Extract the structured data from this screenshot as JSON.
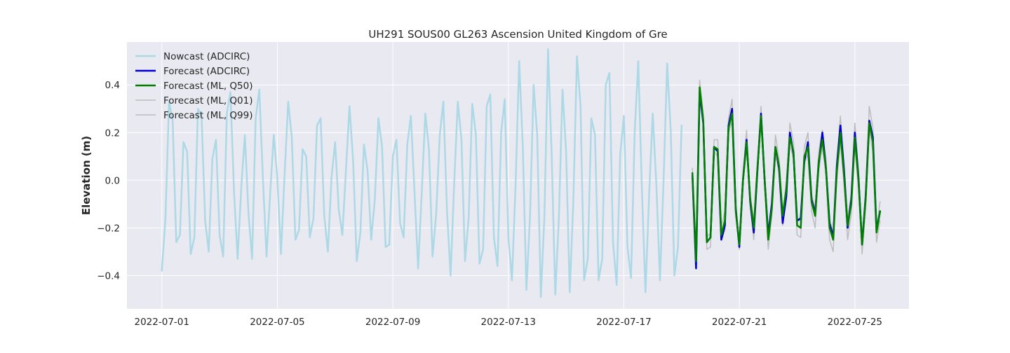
{
  "chart_data": {
    "type": "line",
    "title": "UH291 SOUS00 GL263 Ascension United Kingdom of Gre",
    "xlabel": "",
    "ylabel": "Elevation (m)",
    "x_type": "date",
    "xlim": [
      "2022-06-29T19:00",
      "2022-07-26T21:00"
    ],
    "ylim": [
      -0.54,
      0.58
    ],
    "xticks": [
      "2022-07-01",
      "2022-07-05",
      "2022-07-09",
      "2022-07-13",
      "2022-07-17",
      "2022-07-21",
      "2022-07-25"
    ],
    "yticks": [
      -0.4,
      -0.2,
      0.0,
      0.2,
      0.4
    ],
    "ytick_labels": [
      "−0.4",
      "−0.2",
      "0.0",
      "0.2",
      "0.4"
    ],
    "grid": true,
    "legend_position": "top-left",
    "background": "#e9e9f1",
    "series": [
      {
        "name": "Nowcast (ADCIRC)",
        "color": "#add8e6",
        "width": 2.5,
        "x": [
          "2022-07-01T00:00",
          "2022-07-01T03:00",
          "2022-07-01T06:00",
          "2022-07-01T09:00",
          "2022-07-01T12:00",
          "2022-07-01T15:00",
          "2022-07-01T18:00",
          "2022-07-01T21:00",
          "2022-07-02T00:00",
          "2022-07-02T03:00",
          "2022-07-02T06:00",
          "2022-07-02T09:00",
          "2022-07-02T12:00",
          "2022-07-02T15:00",
          "2022-07-02T18:00",
          "2022-07-02T21:00",
          "2022-07-03T00:00",
          "2022-07-03T03:00",
          "2022-07-03T06:00",
          "2022-07-03T09:00",
          "2022-07-03T12:00",
          "2022-07-03T15:00",
          "2022-07-03T18:00",
          "2022-07-03T21:00",
          "2022-07-04T00:00",
          "2022-07-04T03:00",
          "2022-07-04T06:00",
          "2022-07-04T09:00",
          "2022-07-04T12:00",
          "2022-07-04T15:00",
          "2022-07-04T18:00",
          "2022-07-04T21:00",
          "2022-07-05T00:00",
          "2022-07-05T03:00",
          "2022-07-05T06:00",
          "2022-07-05T09:00",
          "2022-07-05T12:00",
          "2022-07-05T15:00",
          "2022-07-05T18:00",
          "2022-07-05T21:00",
          "2022-07-06T00:00",
          "2022-07-06T03:00",
          "2022-07-06T06:00",
          "2022-07-06T09:00",
          "2022-07-06T12:00",
          "2022-07-06T15:00",
          "2022-07-06T18:00",
          "2022-07-06T21:00",
          "2022-07-07T00:00",
          "2022-07-07T03:00",
          "2022-07-07T06:00",
          "2022-07-07T09:00",
          "2022-07-07T12:00",
          "2022-07-07T15:00",
          "2022-07-07T18:00",
          "2022-07-07T21:00",
          "2022-07-08T00:00",
          "2022-07-08T03:00",
          "2022-07-08T06:00",
          "2022-07-08T09:00",
          "2022-07-08T12:00",
          "2022-07-08T15:00",
          "2022-07-08T18:00",
          "2022-07-08T21:00",
          "2022-07-09T00:00",
          "2022-07-09T03:00",
          "2022-07-09T06:00",
          "2022-07-09T09:00",
          "2022-07-09T12:00",
          "2022-07-09T15:00",
          "2022-07-09T18:00",
          "2022-07-09T21:00",
          "2022-07-10T00:00",
          "2022-07-10T03:00",
          "2022-07-10T06:00",
          "2022-07-10T09:00",
          "2022-07-10T12:00",
          "2022-07-10T15:00",
          "2022-07-10T18:00",
          "2022-07-10T21:00",
          "2022-07-11T00:00",
          "2022-07-11T03:00",
          "2022-07-11T06:00",
          "2022-07-11T09:00",
          "2022-07-11T12:00",
          "2022-07-11T15:00",
          "2022-07-11T18:00",
          "2022-07-11T21:00",
          "2022-07-12T00:00",
          "2022-07-12T03:00",
          "2022-07-12T06:00",
          "2022-07-12T09:00",
          "2022-07-12T12:00",
          "2022-07-12T15:00",
          "2022-07-12T18:00",
          "2022-07-12T21:00",
          "2022-07-13T00:00",
          "2022-07-13T03:00",
          "2022-07-13T06:00",
          "2022-07-13T09:00",
          "2022-07-13T12:00",
          "2022-07-13T15:00",
          "2022-07-13T18:00",
          "2022-07-13T21:00",
          "2022-07-14T00:00",
          "2022-07-14T03:00",
          "2022-07-14T06:00",
          "2022-07-14T09:00",
          "2022-07-14T12:00",
          "2022-07-14T15:00",
          "2022-07-14T18:00",
          "2022-07-14T21:00",
          "2022-07-15T00:00",
          "2022-07-15T03:00",
          "2022-07-15T06:00",
          "2022-07-15T09:00",
          "2022-07-15T12:00",
          "2022-07-15T15:00",
          "2022-07-15T18:00",
          "2022-07-15T21:00",
          "2022-07-16T00:00",
          "2022-07-16T03:00",
          "2022-07-16T06:00",
          "2022-07-16T09:00",
          "2022-07-16T12:00",
          "2022-07-16T15:00",
          "2022-07-16T18:00",
          "2022-07-16T21:00",
          "2022-07-17T00:00",
          "2022-07-17T03:00",
          "2022-07-17T06:00",
          "2022-07-17T09:00",
          "2022-07-17T12:00",
          "2022-07-17T15:00",
          "2022-07-17T18:00",
          "2022-07-17T21:00",
          "2022-07-18T00:00",
          "2022-07-18T03:00",
          "2022-07-18T06:00",
          "2022-07-18T09:00",
          "2022-07-18T12:00",
          "2022-07-18T15:00",
          "2022-07-18T18:00",
          "2022-07-18T21:00",
          "2022-07-19T00:00"
        ],
        "y": [
          -0.38,
          -0.16,
          0.33,
          0.25,
          -0.26,
          -0.23,
          0.16,
          0.12,
          -0.31,
          -0.24,
          0.3,
          0.27,
          -0.17,
          -0.3,
          0.09,
          0.17,
          -0.23,
          -0.32,
          0.28,
          0.37,
          -0.05,
          -0.33,
          -0.03,
          0.19,
          -0.14,
          -0.33,
          0.26,
          0.38,
          0.01,
          -0.32,
          -0.06,
          0.19,
          0.01,
          -0.31,
          0.02,
          0.33,
          0.18,
          -0.25,
          -0.21,
          0.13,
          0.1,
          -0.24,
          -0.16,
          0.23,
          0.26,
          -0.15,
          -0.3,
          0.01,
          0.16,
          -0.12,
          -0.23,
          0.04,
          0.31,
          0.08,
          -0.34,
          -0.22,
          0.15,
          0.04,
          -0.25,
          -0.08,
          0.26,
          0.14,
          -0.28,
          -0.27,
          0.1,
          0.17,
          -0.18,
          -0.24,
          0.15,
          0.27,
          -0.05,
          -0.37,
          -0.05,
          0.28,
          0.13,
          -0.32,
          -0.14,
          0.19,
          0.33,
          -0.13,
          -0.4,
          -0.01,
          0.33,
          0.17,
          -0.34,
          -0.16,
          0.32,
          0.19,
          -0.35,
          -0.29,
          0.31,
          0.36,
          -0.24,
          -0.36,
          0.2,
          0.34,
          -0.24,
          -0.42,
          -0.02,
          0.5,
          0.14,
          -0.46,
          -0.15,
          0.4,
          0.19,
          -0.49,
          -0.15,
          0.55,
          0.11,
          -0.48,
          -0.16,
          0.38,
          0.12,
          -0.47,
          -0.09,
          0.52,
          0.31,
          -0.42,
          -0.33,
          0.26,
          0.19,
          -0.42,
          -0.33,
          0.4,
          0.45,
          -0.26,
          -0.44,
          0.11,
          0.27,
          -0.28,
          -0.41,
          0.2,
          0.5,
          -0.04,
          -0.47,
          -0.06,
          0.28,
          -0.02,
          -0.42,
          0.0,
          0.49,
          0.2,
          -0.4,
          -0.28,
          0.23
        ]
      },
      {
        "name": "Forecast (ADCIRC)",
        "color": "#0000cc",
        "width": 2.5,
        "x": [
          "2022-07-19T09:00",
          "2022-07-19T12:00",
          "2022-07-19T15:00",
          "2022-07-19T18:00",
          "2022-07-19T21:00",
          "2022-07-20T00:00",
          "2022-07-20T03:00",
          "2022-07-20T06:00",
          "2022-07-20T09:00",
          "2022-07-20T12:00",
          "2022-07-20T15:00",
          "2022-07-20T18:00",
          "2022-07-20T21:00",
          "2022-07-21T00:00",
          "2022-07-21T03:00",
          "2022-07-21T06:00",
          "2022-07-21T09:00",
          "2022-07-21T12:00",
          "2022-07-21T15:00",
          "2022-07-21T18:00",
          "2022-07-21T21:00",
          "2022-07-22T00:00",
          "2022-07-22T03:00",
          "2022-07-22T06:00",
          "2022-07-22T09:00",
          "2022-07-22T12:00",
          "2022-07-22T15:00",
          "2022-07-22T18:00",
          "2022-07-22T21:00",
          "2022-07-23T00:00",
          "2022-07-23T03:00",
          "2022-07-23T06:00",
          "2022-07-23T09:00",
          "2022-07-23T12:00",
          "2022-07-23T15:00",
          "2022-07-23T18:00",
          "2022-07-23T21:00",
          "2022-07-24T00:00",
          "2022-07-24T03:00",
          "2022-07-24T06:00",
          "2022-07-24T09:00",
          "2022-07-24T12:00",
          "2022-07-24T15:00",
          "2022-07-24T18:00",
          "2022-07-24T21:00",
          "2022-07-25T00:00",
          "2022-07-25T03:00",
          "2022-07-25T06:00",
          "2022-07-25T09:00",
          "2022-07-25T12:00",
          "2022-07-25T15:00",
          "2022-07-25T18:00",
          "2022-07-25T21:00"
        ],
        "y": [
          0.02,
          -0.37,
          0.37,
          0.24,
          -0.26,
          -0.24,
          0.14,
          0.12,
          -0.25,
          -0.19,
          0.23,
          0.3,
          -0.12,
          -0.28,
          0.0,
          0.17,
          -0.09,
          -0.22,
          0.04,
          0.28,
          0.0,
          -0.23,
          -0.1,
          0.14,
          0.05,
          -0.18,
          -0.07,
          0.2,
          0.11,
          -0.17,
          -0.16,
          0.08,
          0.16,
          -0.08,
          -0.14,
          0.07,
          0.2,
          0.05,
          -0.18,
          -0.24,
          0.06,
          0.23,
          0.04,
          -0.2,
          -0.08,
          0.2,
          0.01,
          -0.27,
          -0.07,
          0.25,
          0.18,
          -0.21,
          -0.13
        ]
      },
      {
        "name": "Forecast (ML, Q50)",
        "color": "#008000",
        "width": 2.5,
        "x": [
          "2022-07-19T09:00",
          "2022-07-19T12:00",
          "2022-07-19T15:00",
          "2022-07-19T18:00",
          "2022-07-19T21:00",
          "2022-07-20T00:00",
          "2022-07-20T03:00",
          "2022-07-20T06:00",
          "2022-07-20T09:00",
          "2022-07-20T12:00",
          "2022-07-20T15:00",
          "2022-07-20T18:00",
          "2022-07-20T21:00",
          "2022-07-21T00:00",
          "2022-07-21T03:00",
          "2022-07-21T06:00",
          "2022-07-21T09:00",
          "2022-07-21T12:00",
          "2022-07-21T15:00",
          "2022-07-21T18:00",
          "2022-07-21T21:00",
          "2022-07-22T00:00",
          "2022-07-22T03:00",
          "2022-07-22T06:00",
          "2022-07-22T09:00",
          "2022-07-22T12:00",
          "2022-07-22T15:00",
          "2022-07-22T18:00",
          "2022-07-22T21:00",
          "2022-07-23T00:00",
          "2022-07-23T03:00",
          "2022-07-23T06:00",
          "2022-07-23T09:00",
          "2022-07-23T12:00",
          "2022-07-23T15:00",
          "2022-07-23T18:00",
          "2022-07-23T21:00",
          "2022-07-24T00:00",
          "2022-07-24T03:00",
          "2022-07-24T06:00",
          "2022-07-24T09:00",
          "2022-07-24T12:00",
          "2022-07-24T15:00",
          "2022-07-24T18:00",
          "2022-07-24T21:00",
          "2022-07-25T00:00",
          "2022-07-25T03:00",
          "2022-07-25T06:00",
          "2022-07-25T09:00",
          "2022-07-25T12:00",
          "2022-07-25T15:00",
          "2022-07-25T18:00",
          "2022-07-25T21:00"
        ],
        "y": [
          0.03,
          -0.34,
          0.39,
          0.25,
          -0.26,
          -0.24,
          0.14,
          0.13,
          -0.23,
          -0.17,
          0.22,
          0.28,
          -0.13,
          -0.27,
          0.0,
          0.16,
          -0.08,
          -0.2,
          0.05,
          0.27,
          0.0,
          -0.25,
          -0.12,
          0.14,
          0.06,
          -0.15,
          -0.04,
          0.18,
          0.12,
          -0.19,
          -0.2,
          0.1,
          0.14,
          -0.09,
          -0.15,
          0.08,
          0.17,
          0.05,
          -0.2,
          -0.25,
          0.04,
          0.2,
          0.02,
          -0.19,
          -0.1,
          0.18,
          0.0,
          -0.27,
          -0.08,
          0.24,
          0.16,
          -0.22,
          -0.13
        ]
      },
      {
        "name": "Forecast (ML, Q01)",
        "color": "#bdbdbd",
        "width": 1.5,
        "x": [
          "2022-07-19T09:00",
          "2022-07-19T12:00",
          "2022-07-19T15:00",
          "2022-07-19T18:00",
          "2022-07-19T21:00",
          "2022-07-20T00:00",
          "2022-07-20T03:00",
          "2022-07-20T06:00",
          "2022-07-20T09:00",
          "2022-07-20T12:00",
          "2022-07-20T15:00",
          "2022-07-20T18:00",
          "2022-07-20T21:00",
          "2022-07-21T00:00",
          "2022-07-21T03:00",
          "2022-07-21T06:00",
          "2022-07-21T09:00",
          "2022-07-21T12:00",
          "2022-07-21T15:00",
          "2022-07-21T18:00",
          "2022-07-21T21:00",
          "2022-07-22T00:00",
          "2022-07-22T03:00",
          "2022-07-22T06:00",
          "2022-07-22T09:00",
          "2022-07-22T12:00",
          "2022-07-22T15:00",
          "2022-07-22T18:00",
          "2022-07-22T21:00",
          "2022-07-23T00:00",
          "2022-07-23T03:00",
          "2022-07-23T06:00",
          "2022-07-23T09:00",
          "2022-07-23T12:00",
          "2022-07-23T15:00",
          "2022-07-23T18:00",
          "2022-07-23T21:00",
          "2022-07-24T00:00",
          "2022-07-24T03:00",
          "2022-07-24T06:00",
          "2022-07-24T09:00",
          "2022-07-24T12:00",
          "2022-07-24T15:00",
          "2022-07-24T18:00",
          "2022-07-24T21:00",
          "2022-07-25T00:00",
          "2022-07-25T03:00",
          "2022-07-25T06:00",
          "2022-07-25T09:00",
          "2022-07-25T12:00",
          "2022-07-25T15:00",
          "2022-07-25T18:00",
          "2022-07-25T21:00"
        ],
        "y": [
          0.0,
          -0.35,
          0.37,
          0.22,
          -0.29,
          -0.28,
          0.12,
          0.1,
          -0.25,
          -0.21,
          0.2,
          0.25,
          -0.15,
          -0.29,
          -0.02,
          0.14,
          -0.11,
          -0.25,
          0.02,
          0.25,
          -0.03,
          -0.29,
          -0.15,
          0.11,
          0.03,
          -0.19,
          -0.08,
          0.15,
          0.09,
          -0.23,
          -0.24,
          0.07,
          0.11,
          -0.13,
          -0.2,
          0.04,
          0.14,
          0.02,
          -0.25,
          -0.3,
          0.0,
          0.16,
          -0.02,
          -0.25,
          -0.14,
          0.14,
          -0.04,
          -0.31,
          -0.12,
          0.21,
          0.12,
          -0.26,
          -0.17
        ]
      },
      {
        "name": "Forecast (ML, Q99)",
        "color": "#bdbdbd",
        "width": 1.5,
        "x": [
          "2022-07-19T09:00",
          "2022-07-19T12:00",
          "2022-07-19T15:00",
          "2022-07-19T18:00",
          "2022-07-19T21:00",
          "2022-07-20T00:00",
          "2022-07-20T03:00",
          "2022-07-20T06:00",
          "2022-07-20T09:00",
          "2022-07-20T12:00",
          "2022-07-20T15:00",
          "2022-07-20T18:00",
          "2022-07-20T21:00",
          "2022-07-21T00:00",
          "2022-07-21T03:00",
          "2022-07-21T06:00",
          "2022-07-21T09:00",
          "2022-07-21T12:00",
          "2022-07-21T15:00",
          "2022-07-21T18:00",
          "2022-07-21T21:00",
          "2022-07-22T00:00",
          "2022-07-22T03:00",
          "2022-07-22T06:00",
          "2022-07-22T09:00",
          "2022-07-22T12:00",
          "2022-07-22T15:00",
          "2022-07-22T18:00",
          "2022-07-22T21:00",
          "2022-07-23T00:00",
          "2022-07-23T03:00",
          "2022-07-23T06:00",
          "2022-07-23T09:00",
          "2022-07-23T12:00",
          "2022-07-23T15:00",
          "2022-07-23T18:00",
          "2022-07-23T21:00",
          "2022-07-24T00:00",
          "2022-07-24T03:00",
          "2022-07-24T06:00",
          "2022-07-24T09:00",
          "2022-07-24T12:00",
          "2022-07-24T15:00",
          "2022-07-24T18:00",
          "2022-07-24T21:00",
          "2022-07-25T00:00",
          "2022-07-25T03:00",
          "2022-07-25T06:00",
          "2022-07-25T09:00",
          "2022-07-25T12:00",
          "2022-07-25T15:00",
          "2022-07-25T18:00",
          "2022-07-25T21:00"
        ],
        "y": [
          0.05,
          -0.32,
          0.42,
          0.28,
          -0.24,
          -0.22,
          0.17,
          0.17,
          -0.2,
          -0.13,
          0.26,
          0.34,
          -0.1,
          -0.25,
          0.03,
          0.21,
          -0.06,
          -0.17,
          0.08,
          0.31,
          0.03,
          -0.22,
          -0.09,
          0.19,
          0.09,
          -0.13,
          -0.01,
          0.24,
          0.16,
          -0.17,
          -0.17,
          0.14,
          0.2,
          -0.06,
          -0.12,
          0.12,
          0.21,
          0.09,
          -0.17,
          -0.22,
          0.08,
          0.27,
          0.07,
          -0.16,
          -0.06,
          0.24,
          0.04,
          -0.24,
          -0.04,
          0.31,
          0.22,
          -0.2,
          -0.09
        ]
      }
    ]
  }
}
